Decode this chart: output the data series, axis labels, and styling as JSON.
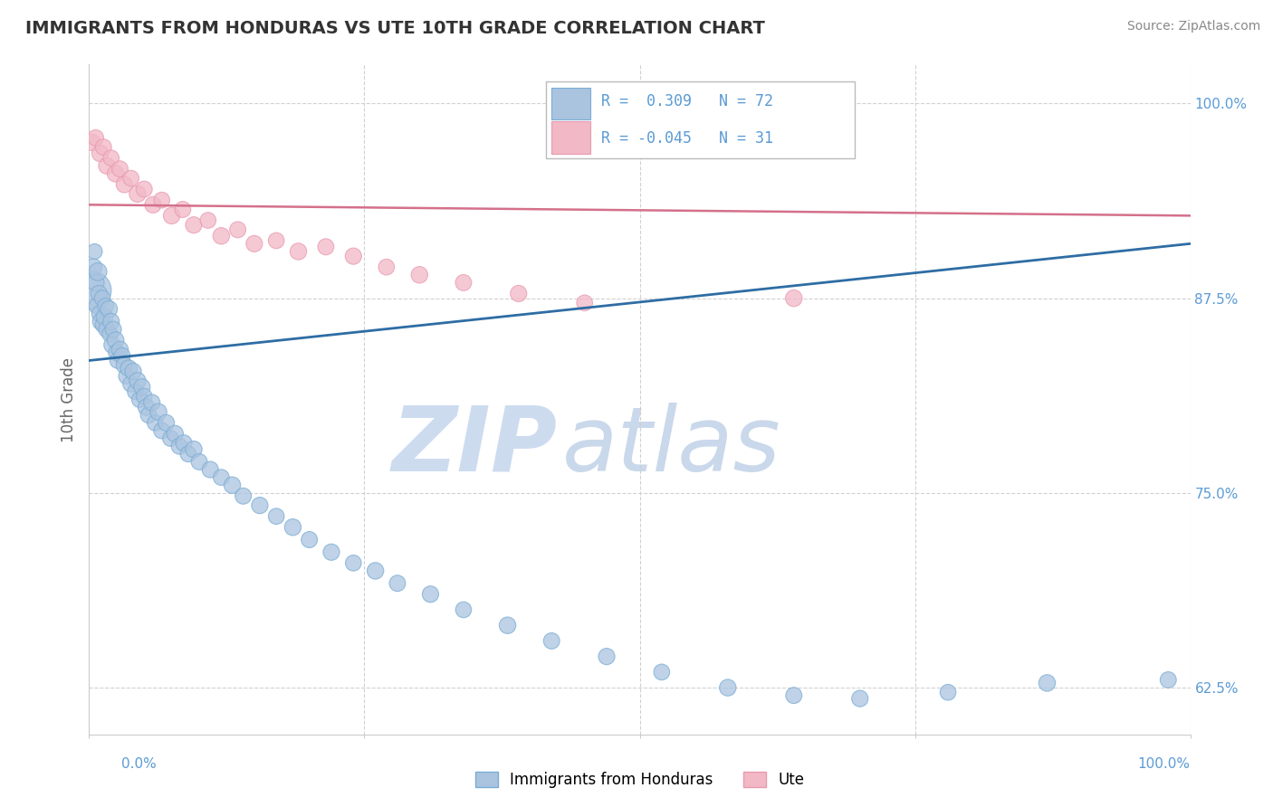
{
  "title": "IMMIGRANTS FROM HONDURAS VS UTE 10TH GRADE CORRELATION CHART",
  "source": "Source: ZipAtlas.com",
  "ylabel": "10th Grade",
  "r_blue": 0.309,
  "n_blue": 72,
  "r_pink": -0.045,
  "n_pink": 31,
  "blue_color": "#aac4e0",
  "blue_edge": "#7aadd4",
  "pink_color": "#f2b8c6",
  "pink_edge": "#e89ab0",
  "blue_line_color": "#2e6da4",
  "pink_line_color": "#d4708a",
  "watermark_zip": "ZIP",
  "watermark_atlas": "atlas",
  "yticks_right": [
    62.5,
    75.0,
    87.5,
    100.0
  ],
  "ytick_labels_right": [
    "62.5%",
    "75.0%",
    "87.5%",
    "100.0%"
  ],
  "blue_scatter_x": [
    0.003,
    0.004,
    0.005,
    0.006,
    0.007,
    0.008,
    0.009,
    0.01,
    0.011,
    0.012,
    0.013,
    0.014,
    0.015,
    0.016,
    0.018,
    0.019,
    0.02,
    0.021,
    0.022,
    0.024,
    0.025,
    0.026,
    0.028,
    0.03,
    0.032,
    0.034,
    0.036,
    0.038,
    0.04,
    0.042,
    0.044,
    0.046,
    0.048,
    0.05,
    0.052,
    0.054,
    0.057,
    0.06,
    0.063,
    0.066,
    0.07,
    0.074,
    0.078,
    0.082,
    0.086,
    0.09,
    0.095,
    0.1,
    0.11,
    0.12,
    0.13,
    0.14,
    0.155,
    0.17,
    0.185,
    0.2,
    0.22,
    0.24,
    0.26,
    0.28,
    0.31,
    0.34,
    0.38,
    0.42,
    0.47,
    0.52,
    0.58,
    0.64,
    0.7,
    0.78,
    0.87,
    0.98
  ],
  "blue_scatter_y": [
    0.88,
    0.895,
    0.905,
    0.885,
    0.87,
    0.892,
    0.878,
    0.865,
    0.86,
    0.875,
    0.858,
    0.863,
    0.87,
    0.855,
    0.868,
    0.852,
    0.86,
    0.845,
    0.855,
    0.848,
    0.84,
    0.835,
    0.842,
    0.838,
    0.832,
    0.825,
    0.83,
    0.82,
    0.828,
    0.815,
    0.822,
    0.81,
    0.818,
    0.812,
    0.805,
    0.8,
    0.808,
    0.795,
    0.802,
    0.79,
    0.795,
    0.785,
    0.788,
    0.78,
    0.782,
    0.775,
    0.778,
    0.77,
    0.765,
    0.76,
    0.755,
    0.748,
    0.742,
    0.735,
    0.728,
    0.72,
    0.712,
    0.705,
    0.7,
    0.692,
    0.685,
    0.675,
    0.665,
    0.655,
    0.645,
    0.635,
    0.625,
    0.62,
    0.618,
    0.622,
    0.628,
    0.63
  ],
  "blue_scatter_size": [
    900,
    180,
    150,
    180,
    160,
    200,
    170,
    180,
    190,
    160,
    170,
    180,
    160,
    170,
    180,
    160,
    170,
    175,
    165,
    180,
    170,
    160,
    175,
    165,
    170,
    160,
    175,
    165,
    170,
    160,
    175,
    165,
    170,
    160,
    175,
    165,
    170,
    160,
    175,
    165,
    170,
    160,
    175,
    165,
    170,
    160,
    175,
    165,
    170,
    160,
    175,
    165,
    170,
    160,
    175,
    165,
    170,
    160,
    175,
    165,
    170,
    160,
    175,
    165,
    170,
    160,
    175,
    165,
    170,
    160,
    175,
    165
  ],
  "pink_scatter_x": [
    0.003,
    0.006,
    0.01,
    0.013,
    0.016,
    0.02,
    0.024,
    0.028,
    0.032,
    0.038,
    0.044,
    0.05,
    0.058,
    0.066,
    0.075,
    0.085,
    0.095,
    0.108,
    0.12,
    0.135,
    0.15,
    0.17,
    0.19,
    0.215,
    0.24,
    0.27,
    0.3,
    0.34,
    0.39,
    0.45,
    0.64
  ],
  "pink_scatter_y": [
    0.975,
    0.978,
    0.968,
    0.972,
    0.96,
    0.965,
    0.955,
    0.958,
    0.948,
    0.952,
    0.942,
    0.945,
    0.935,
    0.938,
    0.928,
    0.932,
    0.922,
    0.925,
    0.915,
    0.919,
    0.91,
    0.912,
    0.905,
    0.908,
    0.902,
    0.895,
    0.89,
    0.885,
    0.878,
    0.872,
    0.875
  ],
  "pink_scatter_size": [
    170,
    160,
    175,
    165,
    170,
    160,
    175,
    165,
    170,
    160,
    175,
    165,
    170,
    160,
    175,
    165,
    170,
    160,
    175,
    165,
    170,
    160,
    175,
    165,
    170,
    160,
    175,
    165,
    170,
    160,
    175
  ],
  "blue_line_x": [
    0.0,
    1.0
  ],
  "blue_line_y": [
    0.835,
    0.91
  ],
  "pink_line_x": [
    0.0,
    1.0
  ],
  "pink_line_y": [
    0.935,
    0.928
  ],
  "legend_r_blue": "R =  0.309",
  "legend_n_blue": "N = 72",
  "legend_r_pink": "R = -0.045",
  "legend_n_pink": "N = 31",
  "xlim": [
    0.0,
    1.0
  ],
  "ylim": [
    0.595,
    1.025
  ],
  "grid_color": "#cccccc",
  "spine_color": "#cccccc",
  "label_color": "#5b9bd5",
  "title_color": "#333333",
  "source_color": "#888888",
  "ylabel_color": "#666666"
}
